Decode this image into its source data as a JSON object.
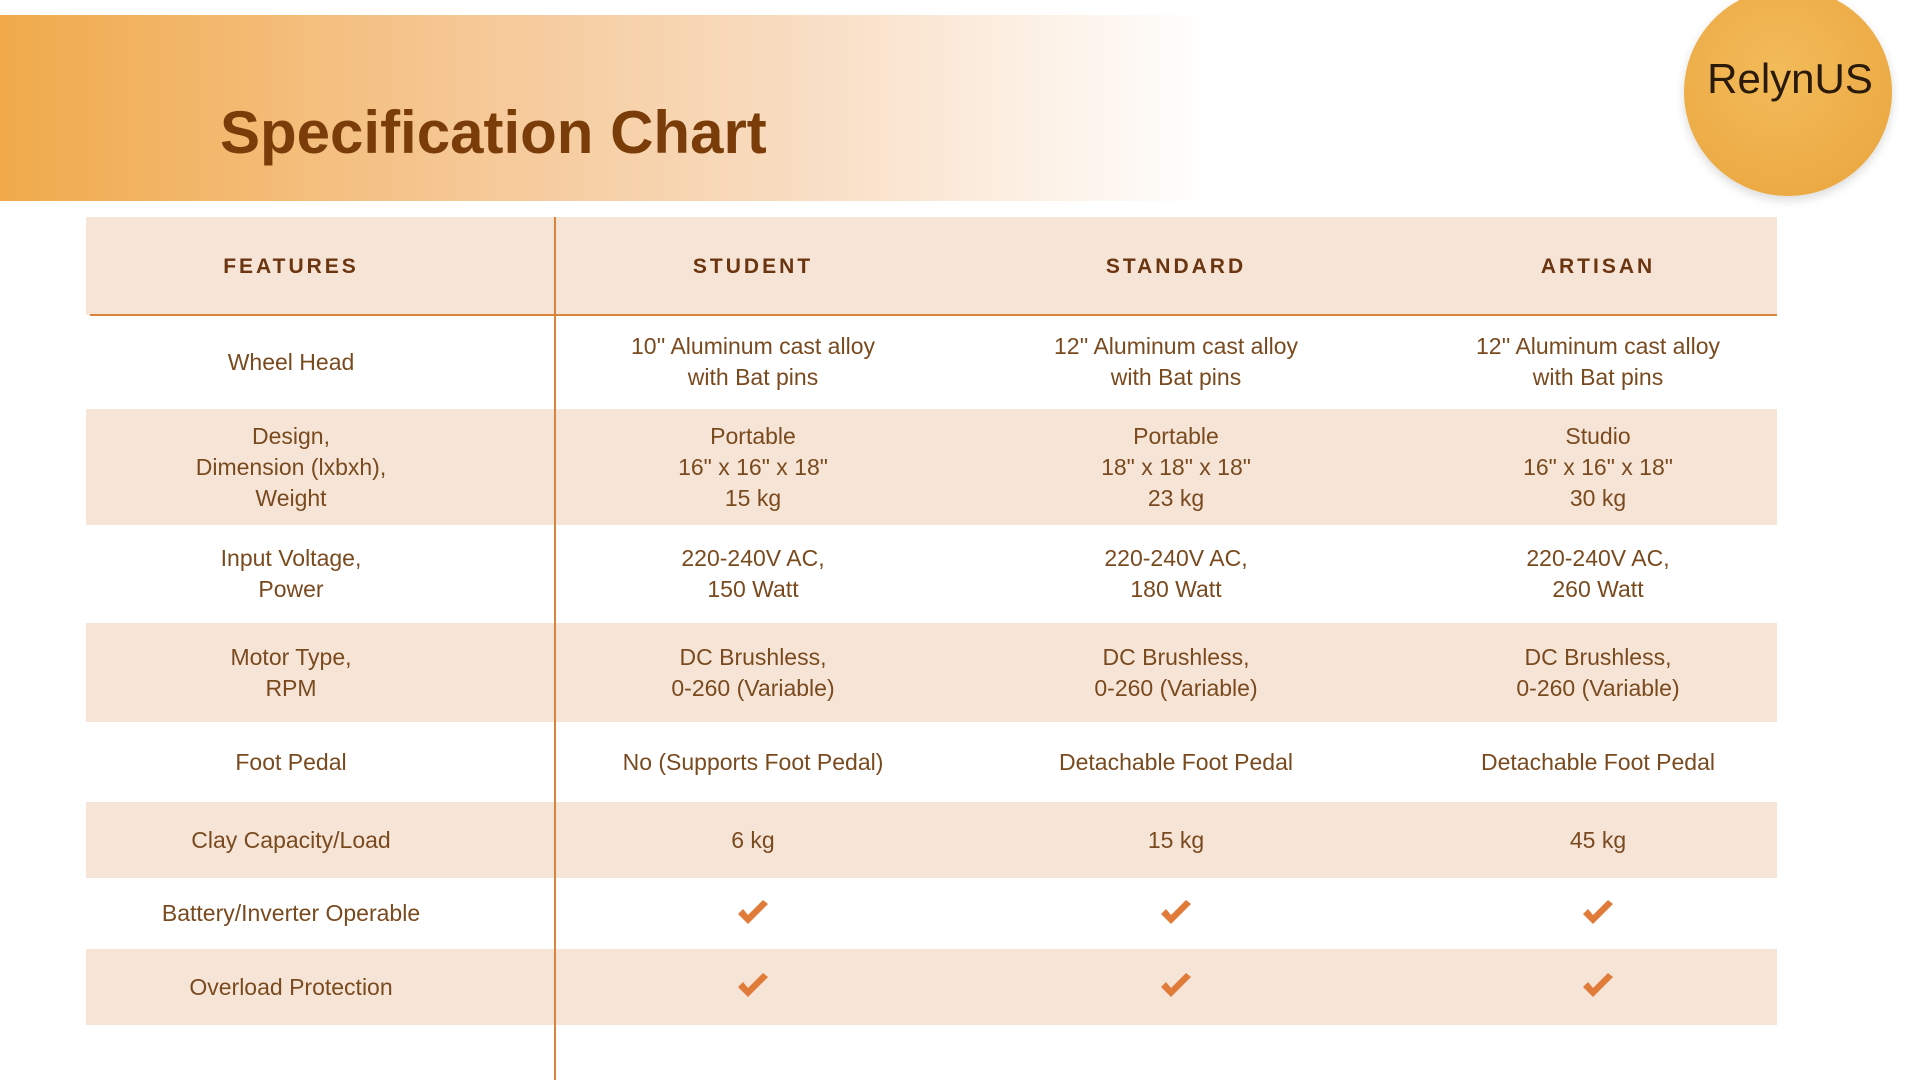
{
  "header": {
    "title": "Specification Chart",
    "logo": "RelynUS"
  },
  "table": {
    "columns": [
      "FEATURES",
      "STUDENT",
      "STANDARD",
      "ARTISAN"
    ],
    "rows": [
      {
        "feature": [
          "Wheel Head"
        ],
        "values": [
          [
            "10'' Aluminum cast alloy",
            "with Bat pins"
          ],
          [
            "12'' Aluminum cast alloy",
            "with Bat pins"
          ],
          [
            "12'' Aluminum cast alloy",
            "with Bat pins"
          ]
        ]
      },
      {
        "feature": [
          "Design,",
          "Dimension (lxbxh),",
          "Weight"
        ],
        "values": [
          [
            "Portable",
            "16\" x 16\" x 18\"",
            "15 kg"
          ],
          [
            "Portable",
            "18\" x 18\" x 18\"",
            "23 kg"
          ],
          [
            "Studio",
            "16\" x 16\" x 18\"",
            "30 kg"
          ]
        ]
      },
      {
        "feature": [
          "Input Voltage,",
          "Power"
        ],
        "values": [
          [
            "220-240V AC,",
            "150 Watt"
          ],
          [
            "220-240V AC,",
            "180 Watt"
          ],
          [
            "220-240V AC,",
            "260 Watt"
          ]
        ]
      },
      {
        "feature": [
          "Motor Type,",
          "RPM"
        ],
        "values": [
          [
            "DC Brushless,",
            "0-260 (Variable)"
          ],
          [
            "DC Brushless,",
            "0-260 (Variable)"
          ],
          [
            "DC Brushless,",
            "0-260 (Variable)"
          ]
        ]
      },
      {
        "feature": [
          "Foot Pedal"
        ],
        "values": [
          [
            "No (Supports Foot Pedal)"
          ],
          [
            "Detachable Foot Pedal"
          ],
          [
            "Detachable Foot Pedal"
          ]
        ]
      },
      {
        "feature": [
          "Clay Capacity/Load"
        ],
        "values": [
          [
            "6 kg"
          ],
          [
            "15 kg"
          ],
          [
            "45 kg"
          ]
        ]
      },
      {
        "feature": [
          "Battery/Inverter Operable"
        ]
      },
      {
        "feature": [
          "Overload Protection"
        ]
      }
    ]
  }
}
